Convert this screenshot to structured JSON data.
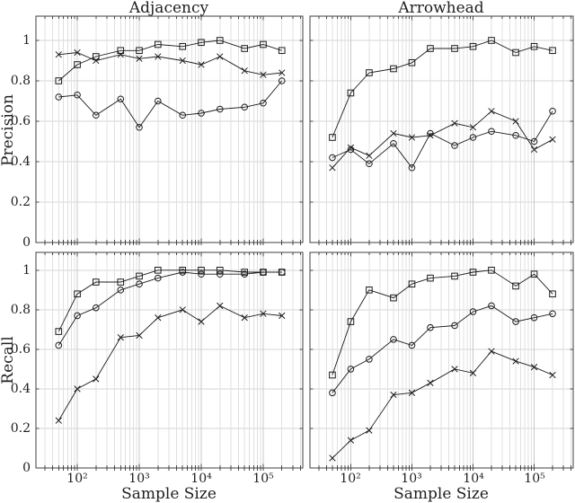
{
  "figure": {
    "column_titles": [
      "Adjacency",
      "Arrowhead"
    ],
    "row_labels": [
      "Precision",
      "Recall"
    ],
    "x_label": "Sample Size",
    "x_tick_labels": [
      "10²",
      "10³",
      "10⁴",
      "10⁵"
    ],
    "x_tick_values": [
      100,
      1000,
      10000,
      100000
    ],
    "y_tick_labels": [
      "1",
      "0.8",
      "0.6",
      "0.4",
      "0.2",
      "0"
    ],
    "y_tick_values": [
      1,
      0.8,
      0.6,
      0.4,
      0.2,
      0
    ],
    "colors": {
      "line": "#1c1c1c",
      "grid_minor": "#e0e0e0",
      "grid_major": "#c8c8c8",
      "grid_horizontal": "#d4d4d4",
      "axis_box": "#3f3f3f",
      "tick": "#4a4a4a",
      "text": "#1f1f1f",
      "background": "#ffffff"
    }
  },
  "chart_data": [
    {
      "id": "adjacency-precision",
      "type": "line",
      "row": 0,
      "col": 0,
      "title": "Adjacency",
      "xlabel": "Sample Size",
      "ylabel": "Precision",
      "xscale": "log",
      "xlim": [
        21.5,
        435000
      ],
      "ylim": [
        0,
        1.12
      ],
      "grid": "log-minor-vertical + major-horizontal",
      "legend": "none",
      "x": [
        50,
        100,
        200,
        500,
        1000,
        2000,
        5000,
        10000,
        20000,
        50000,
        100000,
        200000
      ],
      "series": [
        {
          "name": "square-series",
          "marker": "square",
          "values": [
            0.8,
            0.88,
            0.92,
            0.95,
            0.95,
            0.98,
            0.97,
            0.99,
            1.0,
            0.96,
            0.98,
            0.95
          ]
        },
        {
          "name": "circle-series",
          "marker": "circle",
          "values": [
            0.72,
            0.73,
            0.63,
            0.71,
            0.57,
            0.7,
            0.63,
            0.64,
            0.66,
            0.67,
            0.69,
            0.8
          ]
        },
        {
          "name": "x-series",
          "marker": "x",
          "values": [
            0.93,
            0.94,
            0.9,
            0.93,
            0.91,
            0.92,
            0.9,
            0.88,
            0.92,
            0.85,
            0.83,
            0.84
          ]
        }
      ]
    },
    {
      "id": "arrowhead-precision",
      "type": "line",
      "row": 0,
      "col": 1,
      "title": "Arrowhead",
      "xlabel": "Sample Size",
      "ylabel": "Precision",
      "xscale": "log",
      "xlim": [
        21.5,
        435000
      ],
      "ylim": [
        0,
        1.12
      ],
      "grid": "log-minor-vertical + major-horizontal",
      "legend": "none",
      "x": [
        50,
        100,
        200,
        500,
        1000,
        2000,
        5000,
        10000,
        20000,
        50000,
        100000,
        200000
      ],
      "series": [
        {
          "name": "square-series",
          "marker": "square",
          "values": [
            0.52,
            0.74,
            0.84,
            0.86,
            0.89,
            0.96,
            0.96,
            0.97,
            1.0,
            0.94,
            0.97,
            0.95
          ]
        },
        {
          "name": "circle-series",
          "marker": "circle",
          "values": [
            0.42,
            0.46,
            0.39,
            0.49,
            0.37,
            0.54,
            0.48,
            0.52,
            0.55,
            0.53,
            0.5,
            0.65
          ]
        },
        {
          "name": "x-series",
          "marker": "x",
          "values": [
            0.37,
            0.47,
            0.43,
            0.54,
            0.52,
            0.53,
            0.59,
            0.57,
            0.65,
            0.6,
            0.46,
            0.51
          ]
        }
      ]
    },
    {
      "id": "adjacency-recall",
      "type": "line",
      "row": 1,
      "col": 0,
      "title": "Adjacency",
      "xlabel": "Sample Size",
      "ylabel": "Recall",
      "xscale": "log",
      "xlim": [
        21.5,
        435000
      ],
      "ylim": [
        0,
        1.09
      ],
      "grid": "log-minor-vertical + major-horizontal",
      "legend": "none",
      "x": [
        50,
        100,
        200,
        500,
        1000,
        2000,
        5000,
        10000,
        20000,
        50000,
        100000,
        200000
      ],
      "series": [
        {
          "name": "square-series",
          "marker": "square",
          "values": [
            0.69,
            0.88,
            0.94,
            0.94,
            0.97,
            1.0,
            1.0,
            1.0,
            1.0,
            0.99,
            0.99,
            0.99
          ]
        },
        {
          "name": "circle-series",
          "marker": "circle",
          "values": [
            0.62,
            0.77,
            0.81,
            0.9,
            0.93,
            0.96,
            0.99,
            0.98,
            0.98,
            0.98,
            0.99,
            0.99
          ]
        },
        {
          "name": "x-series",
          "marker": "x",
          "values": [
            0.24,
            0.4,
            0.45,
            0.66,
            0.67,
            0.76,
            0.8,
            0.74,
            0.82,
            0.76,
            0.78,
            0.77
          ]
        }
      ]
    },
    {
      "id": "arrowhead-recall",
      "type": "line",
      "row": 1,
      "col": 1,
      "title": "Arrowhead",
      "xlabel": "Sample Size",
      "ylabel": "Recall",
      "xscale": "log",
      "xlim": [
        21.5,
        435000
      ],
      "ylim": [
        0,
        1.09
      ],
      "grid": "log-minor-vertical + major-horizontal",
      "legend": "none",
      "x": [
        50,
        100,
        200,
        500,
        1000,
        2000,
        5000,
        10000,
        20000,
        50000,
        100000,
        200000
      ],
      "series": [
        {
          "name": "square-series",
          "marker": "square",
          "values": [
            0.47,
            0.74,
            0.9,
            0.86,
            0.93,
            0.96,
            0.97,
            0.99,
            1.0,
            0.92,
            0.98,
            0.88
          ]
        },
        {
          "name": "circle-series",
          "marker": "circle",
          "values": [
            0.38,
            0.5,
            0.55,
            0.65,
            0.62,
            0.71,
            0.72,
            0.79,
            0.82,
            0.74,
            0.76,
            0.78
          ]
        },
        {
          "name": "x-series",
          "marker": "x",
          "values": [
            0.05,
            0.14,
            0.19,
            0.37,
            0.38,
            0.43,
            0.5,
            0.48,
            0.59,
            0.54,
            0.51,
            0.47
          ]
        }
      ]
    }
  ]
}
